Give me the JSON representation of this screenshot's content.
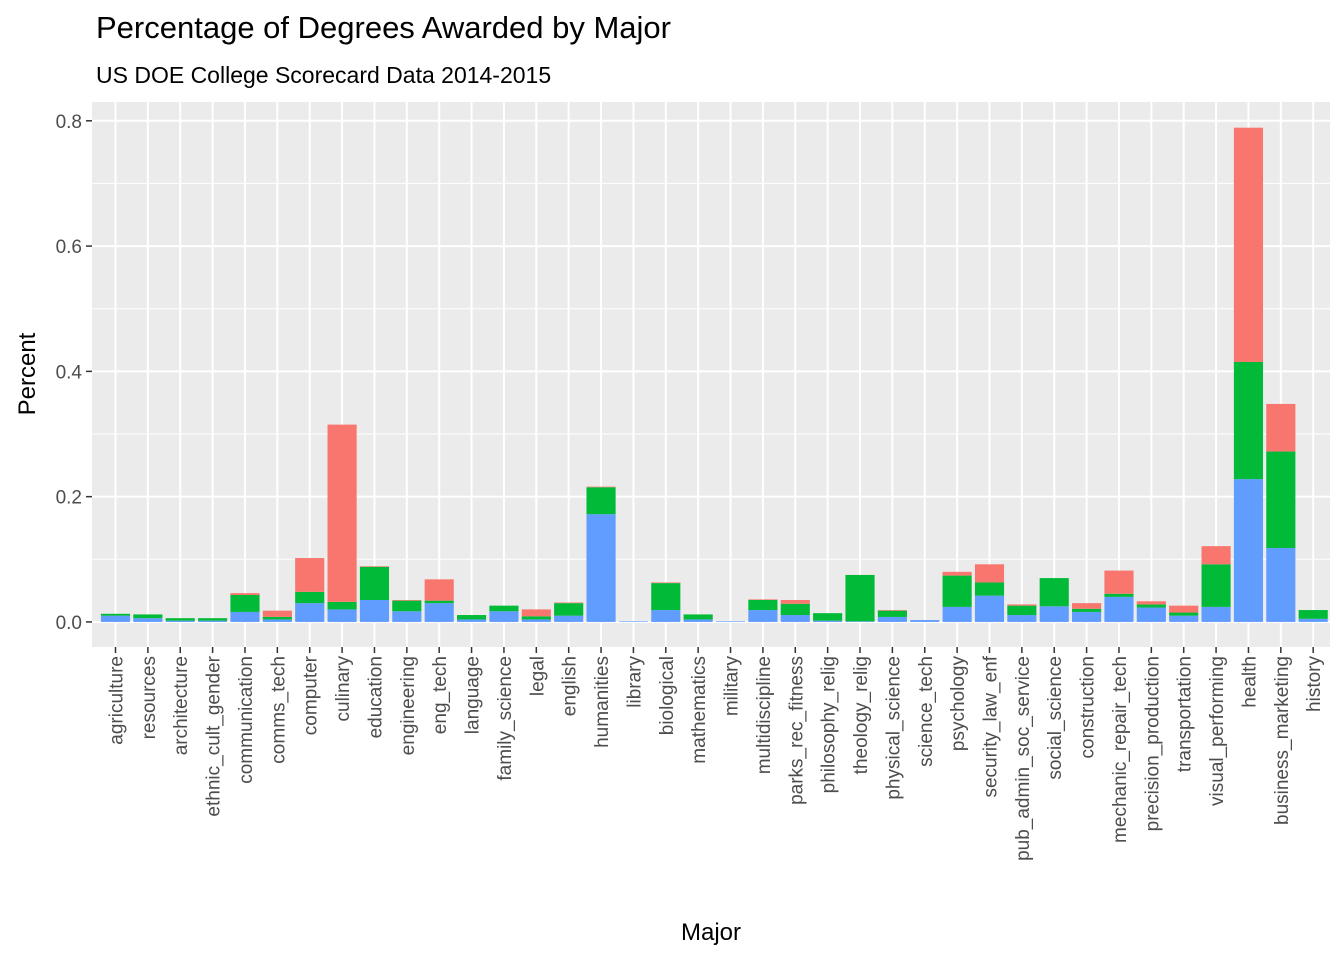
{
  "chart_data": {
    "type": "bar",
    "stacked": true,
    "title": "Percentage of Degrees Awarded by Major",
    "subtitle": "US DOE College Scorecard Data 2014-2015",
    "xlabel": "Major",
    "ylabel": "Percent",
    "ylim": [
      -0.04,
      0.83
    ],
    "yticks": [
      0.0,
      0.2,
      0.4,
      0.6,
      0.8
    ],
    "ytick_labels": [
      "0.0",
      "0.2",
      "0.4",
      "0.6",
      "0.8"
    ],
    "grid": true,
    "legend": "none",
    "categories": [
      "agriculture",
      "resources",
      "architecture",
      "ethnic_cult_gender",
      "communication",
      "comms_tech",
      "computer",
      "culinary",
      "education",
      "engineering",
      "eng_tech",
      "language",
      "family_science",
      "legal",
      "english",
      "humanities",
      "library",
      "biological",
      "mathematics",
      "military",
      "multidiscipline",
      "parks_rec_fitness",
      "philosophy_relig",
      "theology_relig",
      "physical_science",
      "science_tech",
      "psychology",
      "security_law_enf",
      "pub_admin_soc_service",
      "social_science",
      "construction",
      "mechanic_repair_tech",
      "precision_production",
      "transportation",
      "visual_performing",
      "health",
      "business_marketing",
      "history"
    ],
    "series": [
      {
        "color": "#619CFF",
        "values": [
          0.01,
          0.006,
          0.002,
          0.002,
          0.016,
          0.004,
          0.03,
          0.02,
          0.035,
          0.017,
          0.03,
          0.004,
          0.017,
          0.004,
          0.01,
          0.172,
          0.001,
          0.019,
          0.004,
          0.001,
          0.019,
          0.011,
          0.002,
          0.001,
          0.008,
          0.003,
          0.024,
          0.042,
          0.011,
          0.025,
          0.016,
          0.04,
          0.023,
          0.01,
          0.024,
          0.228,
          0.118,
          0.005
        ]
      },
      {
        "color": "#00BA38",
        "values": [
          0.003,
          0.006,
          0.004,
          0.004,
          0.027,
          0.004,
          0.018,
          0.012,
          0.053,
          0.017,
          0.004,
          0.007,
          0.009,
          0.005,
          0.02,
          0.043,
          0.0,
          0.043,
          0.008,
          0.0,
          0.016,
          0.018,
          0.012,
          0.074,
          0.01,
          0.0,
          0.05,
          0.021,
          0.015,
          0.045,
          0.005,
          0.005,
          0.005,
          0.005,
          0.068,
          0.187,
          0.154,
          0.014
        ]
      },
      {
        "color": "#F8766D",
        "values": [
          0.0,
          0.0,
          0.0,
          0.0,
          0.003,
          0.01,
          0.054,
          0.283,
          0.001,
          0.001,
          0.034,
          0.0,
          0.0,
          0.011,
          0.001,
          0.001,
          0.0,
          0.001,
          0.0,
          0.0,
          0.001,
          0.006,
          0.0,
          0.0,
          0.001,
          0.0,
          0.006,
          0.029,
          0.002,
          0.0,
          0.009,
          0.037,
          0.005,
          0.011,
          0.029,
          0.374,
          0.076,
          0.0
        ]
      }
    ]
  }
}
